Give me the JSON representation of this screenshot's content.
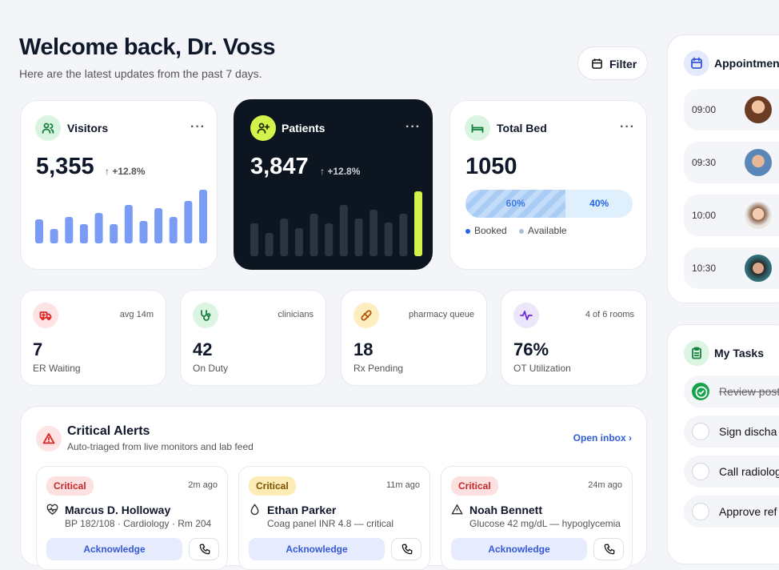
{
  "header": {
    "title": "Welcome back, Dr. Voss",
    "subtitle": "Here are the latest updates from the past 7 days.",
    "filter": "Filter"
  },
  "stats": [
    {
      "label": "Visitors",
      "value": "5,355",
      "change": "+12.8%",
      "bar_color": "#7b9cf4",
      "bars": [
        30,
        18,
        33,
        24,
        38,
        24,
        48,
        28,
        44,
        33,
        53,
        67
      ]
    },
    {
      "label": "Patients",
      "value": "3,847",
      "change": "+12.8%",
      "bar_color": "#2a3442",
      "highlight_color": "#d4f34a",
      "bars": [
        41,
        29,
        47,
        35,
        53,
        41,
        64,
        47,
        58,
        42,
        53,
        81
      ]
    }
  ],
  "beds": {
    "label": "Total Bed",
    "value": "1050",
    "booked": {
      "value": 60,
      "label": "60%"
    },
    "available": {
      "value": 40,
      "label": "40%"
    },
    "legend": [
      "Booked",
      "Available"
    ]
  },
  "metrics": [
    {
      "value": "7",
      "label": "ER Waiting",
      "note": "avg 14m"
    },
    {
      "value": "42",
      "label": "On Duty",
      "note": "clinicians"
    },
    {
      "value": "18",
      "label": "Rx Pending",
      "note": "pharmacy queue"
    },
    {
      "value": "76%",
      "label": "OT Utilization",
      "note": "4 of 6 rooms"
    }
  ],
  "alerts": {
    "title": "Critical Alerts",
    "subtitle": "Auto-triaged from live monitors and lab feed",
    "link": "Open inbox ›",
    "items": [
      {
        "severity": "Critical",
        "time": "2m ago",
        "name": "Marcus D. Holloway",
        "detail": "BP 182/108 · Cardiology · Rm 204",
        "action": "Acknowledge"
      },
      {
        "severity": "Critical",
        "time": "11m ago",
        "name": "Ethan Parker",
        "detail": "Coag panel INR 4.8 — critical",
        "action": "Acknowledge"
      },
      {
        "severity": "Critical",
        "time": "24m ago",
        "name": "Noah Bennett",
        "detail": "Glucose 42 mg/dL — hypoglycemia",
        "action": "Acknowledge"
      }
    ]
  },
  "appointments": {
    "title": "Appointment",
    "times": [
      "09:00",
      "09:30",
      "10:00",
      "10:30"
    ]
  },
  "tasks": {
    "title": "My Tasks",
    "items": [
      {
        "text": "Review post",
        "done": true
      },
      {
        "text": "Sign discha",
        "done": false
      },
      {
        "text": "Call radiolog",
        "done": false
      },
      {
        "text": "Approve ref",
        "done": false
      }
    ]
  }
}
